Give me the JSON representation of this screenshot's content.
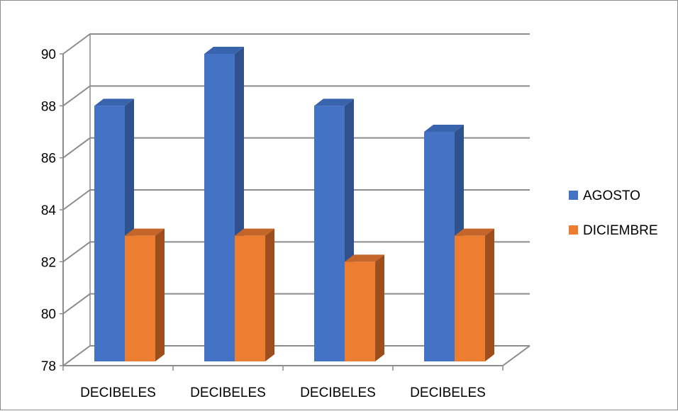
{
  "chart_data": {
    "type": "bar",
    "three_d": true,
    "title": "",
    "xlabel": "",
    "ylabel": "",
    "categories": [
      "DECIBELES",
      "DECIBELES",
      "DECIBELES",
      "DECIBELES"
    ],
    "series": [
      {
        "name": "AGOSTO",
        "values": [
          88,
          90,
          88,
          87
        ],
        "color": "#4472c4",
        "side_color": "#2f528f",
        "top_color": "#3a63ad"
      },
      {
        "name": "DICIEMBRE",
        "values": [
          83,
          83,
          82,
          83
        ],
        "color": "#ed7d31",
        "side_color": "#9e4e1c",
        "top_color": "#c4652a"
      }
    ],
    "ylim": [
      78,
      90
    ],
    "yticks": [
      78,
      80,
      82,
      84,
      86,
      88,
      90
    ],
    "grid": true,
    "legend": "right",
    "axis_color": "#8c8c8c",
    "grid_color": "#8c8c8c"
  }
}
